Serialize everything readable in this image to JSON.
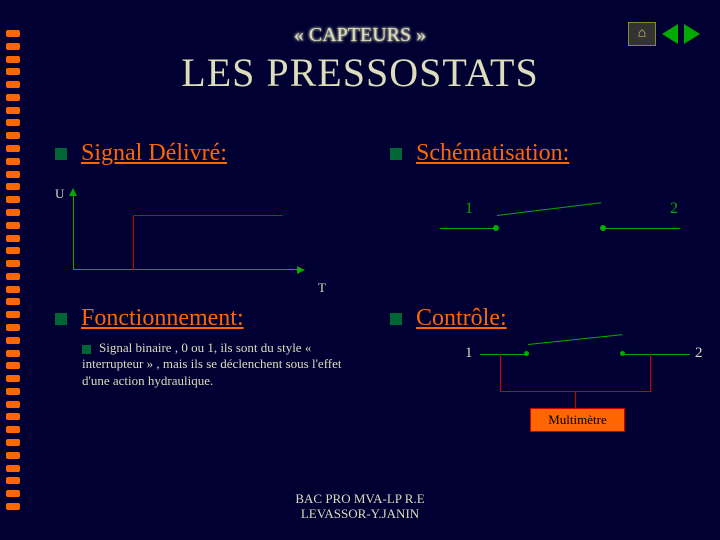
{
  "header": {
    "subtitle": "« CAPTEURS »",
    "title": "LES PRESSOSTATS"
  },
  "sections": {
    "signal": {
      "label": "Signal Délivré:"
    },
    "schema": {
      "label": "Schématisation:"
    },
    "fonct": {
      "label": "Fonctionnement:"
    },
    "ctrl": {
      "label": "Contrôle:"
    }
  },
  "graph": {
    "y_label": "U",
    "x_label": "T",
    "axis_color": "#00aa00",
    "signal_color": "#cc0000"
  },
  "schematic": {
    "terminal_1": "1",
    "terminal_2": "2",
    "wire_color": "#00aa00"
  },
  "body_text": "Signal binaire , 0 ou 1, ils sont du style « interrupteur » , mais ils se déclenchent sous l'effet d'une action hydraulique.",
  "control": {
    "terminal_1": "1",
    "terminal_2": "2",
    "device_label": "Multimètre",
    "probe_color": "#cc0000",
    "box_fill": "#ff6600"
  },
  "footer": {
    "line1": "BAC PRO MVA-LP R.E",
    "line2": "LEVASSOR-Y.JANIN"
  },
  "palette": {
    "background": "#000033",
    "accent": "#ff6600",
    "text_light": "#ddddbb",
    "bullet": "#006633"
  }
}
